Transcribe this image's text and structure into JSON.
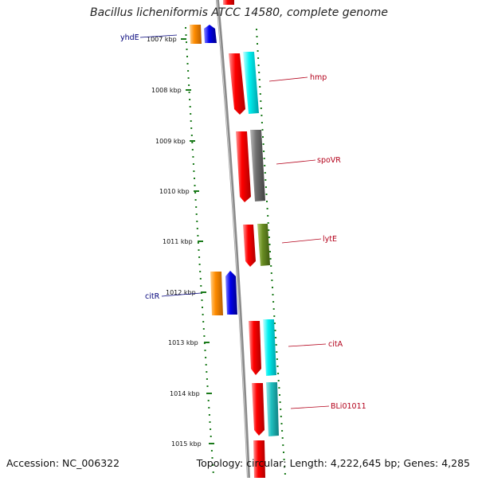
{
  "header": {
    "title": "Bacillus licheniformis ATCC 14580, complete genome"
  },
  "footer": {
    "accession": "Accession: NC_006322",
    "stats": "Topology: circular; Length: 4,222,645 bp; Genes: 4,285"
  },
  "scale_ticks": [
    "1007 kbp",
    "1008 kbp",
    "1009 kbp",
    "1010 kbp",
    "1011 kbp",
    "1012 kbp",
    "1013 kbp",
    "1014 kbp",
    "1015 kbp"
  ],
  "gene_labels": {
    "yhdE": "yhdE",
    "hmp": "hmp",
    "spoVR": "spoVR",
    "lytE": "lytE",
    "citR": "citR",
    "citA": "citA",
    "BLi01011": "BLi01011"
  },
  "colors": {
    "forward_cds": "#ff0000",
    "reverse_cds": "#ff8c00",
    "blue_feature": "#0000ee",
    "cyan_feature": "#00f0f0",
    "gray_feature": "#707070",
    "olive_feature": "#6b8e23",
    "teal_feature": "#20c0c0",
    "tick_green": "#1a7a1a",
    "backbone": "#8a8a8a"
  }
}
